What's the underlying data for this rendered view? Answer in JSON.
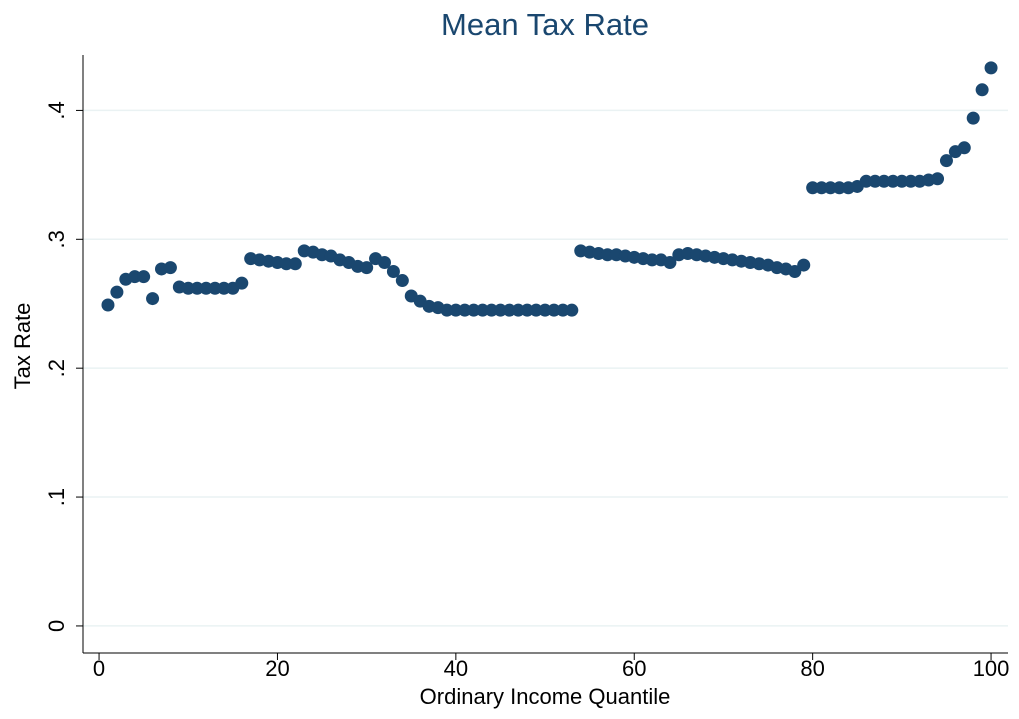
{
  "chart_data": {
    "type": "scatter",
    "title": "Mean Tax Rate",
    "x_label": "Ordinary Income Quantile",
    "y_label": "Tax Rate",
    "color": "#1a476f",
    "grid": true,
    "xlim": [
      -1.8,
      101.9
    ],
    "ylim": [
      -0.021,
      0.443
    ],
    "xticks": [
      0,
      20,
      40,
      60,
      80,
      100
    ],
    "yticks": [
      0,
      {
        "value": 0.1,
        "label": ".1"
      },
      {
        "value": 0.2,
        "label": ".2"
      },
      {
        "value": 0.3,
        "label": ".3"
      },
      {
        "value": 0.4,
        "label": ".4"
      }
    ],
    "x": [
      1,
      2,
      3,
      4,
      5,
      6,
      7,
      8,
      9,
      10,
      11,
      12,
      13,
      14,
      15,
      16,
      17,
      18,
      19,
      20,
      21,
      22,
      23,
      24,
      25,
      26,
      27,
      28,
      29,
      30,
      31,
      32,
      33,
      34,
      35,
      36,
      37,
      38,
      39,
      40,
      41,
      42,
      43,
      44,
      45,
      46,
      47,
      48,
      49,
      50,
      51,
      52,
      53,
      54,
      55,
      56,
      57,
      58,
      59,
      60,
      61,
      62,
      63,
      64,
      65,
      66,
      67,
      68,
      69,
      70,
      71,
      72,
      73,
      74,
      75,
      76,
      77,
      78,
      79,
      80,
      81,
      82,
      83,
      84,
      85,
      86,
      87,
      88,
      89,
      90,
      91,
      92,
      93,
      94,
      95,
      96,
      97,
      98,
      99,
      100
    ],
    "values": [
      0.249,
      0.259,
      0.269,
      0.271,
      0.271,
      0.254,
      0.277,
      0.278,
      0.263,
      0.262,
      0.262,
      0.262,
      0.262,
      0.262,
      0.262,
      0.266,
      0.285,
      0.284,
      0.283,
      0.282,
      0.281,
      0.281,
      0.291,
      0.29,
      0.288,
      0.287,
      0.284,
      0.282,
      0.279,
      0.278,
      0.285,
      0.282,
      0.275,
      0.268,
      0.256,
      0.252,
      0.248,
      0.247,
      0.245,
      0.245,
      0.245,
      0.245,
      0.245,
      0.245,
      0.245,
      0.245,
      0.245,
      0.245,
      0.245,
      0.245,
      0.245,
      0.245,
      0.245,
      0.291,
      0.29,
      0.289,
      0.288,
      0.288,
      0.287,
      0.286,
      0.285,
      0.284,
      0.284,
      0.282,
      0.288,
      0.289,
      0.288,
      0.287,
      0.286,
      0.285,
      0.284,
      0.283,
      0.282,
      0.281,
      0.28,
      0.278,
      0.277,
      0.275,
      0.28,
      0.34,
      0.34,
      0.34,
      0.34,
      0.34,
      0.341,
      0.345,
      0.345,
      0.345,
      0.345,
      0.345,
      0.345,
      0.345,
      0.346,
      0.347,
      0.361,
      0.368,
      0.371,
      0.394,
      0.416,
      0.433
    ]
  }
}
